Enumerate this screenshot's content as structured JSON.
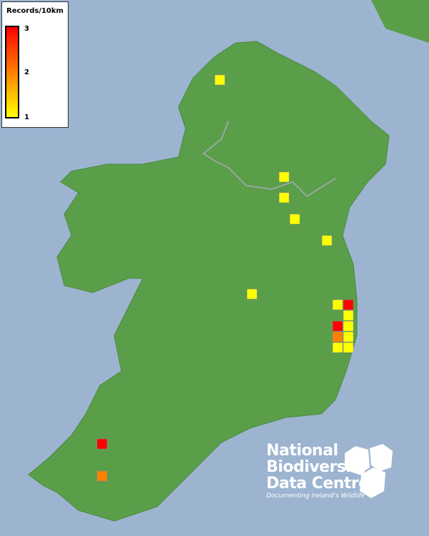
{
  "legend": {
    "title": "Records/10km",
    "max_label": "3",
    "mid_label": "2",
    "min_label": "1",
    "colors": {
      "low": "#ffff00",
      "mid": "#ff8000",
      "high": "#ff0000"
    }
  },
  "map": {
    "land_color": "#5a9e4a",
    "sea_color": "#9cb4d0",
    "square_records": [
      1,
      1,
      1,
      1,
      1,
      1,
      1,
      3,
      1,
      3,
      1,
      2,
      1,
      1,
      1,
      3,
      2
    ]
  },
  "logo": {
    "line1": "National",
    "line2": "Biodiversity",
    "line3": "Data Centre",
    "tagline": "Documenting Ireland's Wildlife"
  }
}
